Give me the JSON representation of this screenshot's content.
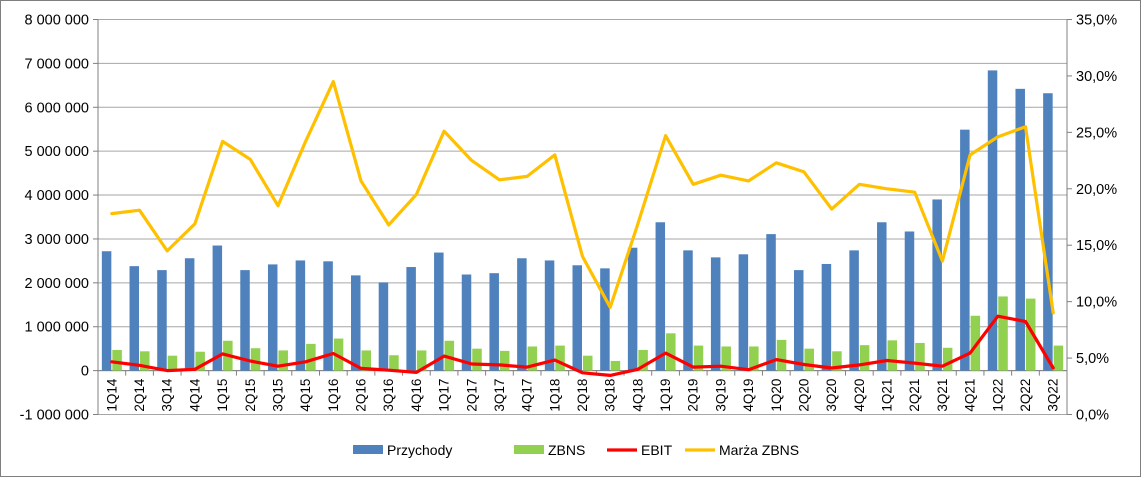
{
  "chart_data": {
    "type": "bar",
    "categories": [
      "1Q14",
      "2Q14",
      "3Q14",
      "4Q14",
      "1Q15",
      "2Q15",
      "3Q15",
      "4Q15",
      "1Q16",
      "2Q16",
      "3Q16",
      "4Q16",
      "1Q17",
      "2Q17",
      "3Q17",
      "4Q17",
      "1Q18",
      "2Q18",
      "3Q18",
      "4Q18",
      "1Q19",
      "2Q19",
      "3Q19",
      "4Q19",
      "1Q20",
      "2Q20",
      "3Q20",
      "4Q20",
      "1Q21",
      "2Q21",
      "3Q21",
      "4Q21",
      "1Q22",
      "2Q22",
      "3Q22"
    ],
    "series": [
      {
        "name": "Przychody",
        "type": "bar",
        "axis": "left",
        "color": "#4F81BD",
        "values": [
          2720000,
          2380000,
          2290000,
          2560000,
          2850000,
          2290000,
          2420000,
          2510000,
          2490000,
          2170000,
          2010000,
          2360000,
          2690000,
          2190000,
          2220000,
          2560000,
          2510000,
          2400000,
          2330000,
          2800000,
          3380000,
          2740000,
          2580000,
          2650000,
          3110000,
          2290000,
          2430000,
          2740000,
          3380000,
          3170000,
          3900000,
          5490000,
          6840000,
          6420000,
          6320000
        ]
      },
      {
        "name": "ZBNS",
        "type": "bar",
        "axis": "left",
        "color": "#92D050",
        "values": [
          470000,
          440000,
          340000,
          430000,
          680000,
          510000,
          460000,
          610000,
          730000,
          460000,
          350000,
          460000,
          680000,
          500000,
          450000,
          550000,
          570000,
          340000,
          220000,
          470000,
          850000,
          570000,
          550000,
          550000,
          700000,
          500000,
          440000,
          580000,
          690000,
          630000,
          520000,
          1250000,
          1690000,
          1640000,
          570000
        ]
      },
      {
        "name": "EBIT",
        "type": "line",
        "axis": "left",
        "color": "#FF0000",
        "values": [
          200000,
          120000,
          0,
          30000,
          380000,
          220000,
          100000,
          200000,
          390000,
          50000,
          10000,
          -40000,
          330000,
          150000,
          130000,
          80000,
          240000,
          -50000,
          -110000,
          30000,
          400000,
          80000,
          100000,
          20000,
          250000,
          140000,
          60000,
          130000,
          230000,
          170000,
          100000,
          400000,
          1240000,
          1120000,
          60000
        ]
      },
      {
        "name": "Marża ZBNS",
        "type": "line",
        "axis": "right",
        "color": "#FFC000",
        "values": [
          17.8,
          18.1,
          14.5,
          16.9,
          24.2,
          22.6,
          18.5,
          24.2,
          29.5,
          20.7,
          16.8,
          19.5,
          25.1,
          22.5,
          20.8,
          21.1,
          23.0,
          14.0,
          9.5,
          16.9,
          24.7,
          20.4,
          21.2,
          20.7,
          22.3,
          21.5,
          18.2,
          20.4,
          20.0,
          19.7,
          13.6,
          23.0,
          24.6,
          25.5,
          9.0
        ]
      }
    ],
    "left_axis": {
      "min": -1000000,
      "max": 8000000,
      "step": 1000000,
      "tick_labels": [
        "-1 000 000",
        "0",
        "1 000 000",
        "2 000 000",
        "3 000 000",
        "4 000 000",
        "5 000 000",
        "6 000 000",
        "7 000 000",
        "8 000 000"
      ]
    },
    "right_axis": {
      "min": 0,
      "max": 35,
      "step": 5,
      "tick_labels": [
        "0,0%",
        "5,0%",
        "10,0%",
        "15,0%",
        "20,0%",
        "25,0%",
        "30,0%",
        "35,0%"
      ]
    },
    "legend": {
      "position": "bottom",
      "entries": [
        "Przychody",
        "ZBNS",
        "EBIT",
        "Marża ZBNS"
      ]
    },
    "grid": true,
    "title": "",
    "xlabel": "",
    "ylabel": ""
  }
}
